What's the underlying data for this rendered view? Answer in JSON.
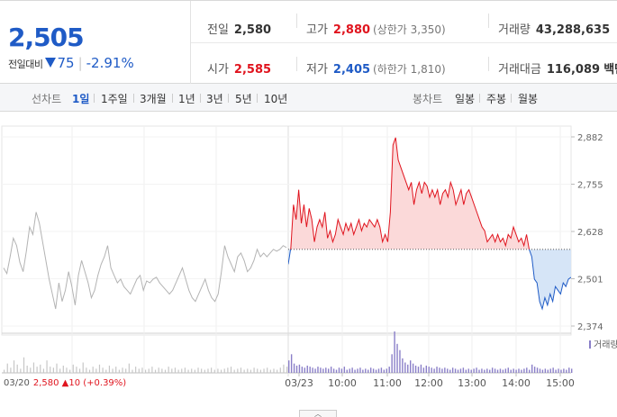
{
  "quote": {
    "price": "2,505",
    "change_label": "전일대비",
    "change": "75",
    "change_rate": "-2.91%",
    "prev_close_label": "전일",
    "prev_close": "2,580",
    "high_label": "고가",
    "high": "2,880",
    "upper_limit": "(상한가 3,350)",
    "volume_label": "거래량",
    "volume": "43,288,635",
    "open_label": "시가",
    "open": "2,585",
    "low_label": "저가",
    "low": "2,405",
    "lower_limit": "(하한가 1,810)",
    "amount_label": "거래대금",
    "amount": "116,089",
    "amount_unit": "백만"
  },
  "tabs": {
    "line_label": "선차트",
    "line": [
      "1일",
      "1주일",
      "3개월",
      "1년",
      "3년",
      "5년",
      "10년"
    ],
    "line_selected": "1일",
    "candle_label": "봉차트",
    "candle": [
      "일봉",
      "주봉",
      "월봉"
    ]
  },
  "chart_data": {
    "type": "line",
    "y_ticks": [
      "2,882",
      "2,755",
      "2,628",
      "2,501",
      "2,374"
    ],
    "ylim": [
      2374,
      2882
    ],
    "x_ticks": [
      "03/23",
      "10:00",
      "11:00",
      "12:00",
      "13:00",
      "14:00",
      "15:00"
    ],
    "prev_day_label": "03/20",
    "prev_day_close": "2,580",
    "prev_day_change": "▲10 (+0.39%)",
    "baseline": 2580,
    "volume_label": "거래량",
    "prev_day_series": [
      2530,
      2515,
      2560,
      2610,
      2590,
      2545,
      2520,
      2575,
      2640,
      2620,
      2680,
      2650,
      2600,
      2550,
      2500,
      2460,
      2420,
      2490,
      2440,
      2470,
      2520,
      2480,
      2430,
      2510,
      2550,
      2520,
      2490,
      2450,
      2470,
      2510,
      2540,
      2560,
      2590,
      2530,
      2510,
      2490,
      2500,
      2480,
      2470,
      2460,
      2480,
      2500,
      2510,
      2470,
      2495,
      2490,
      2500,
      2505,
      2490,
      2480,
      2470,
      2460,
      2470,
      2490,
      2510,
      2530,
      2500,
      2470,
      2450,
      2440,
      2460,
      2480,
      2500,
      2470,
      2450,
      2440,
      2460,
      2520,
      2590,
      2560,
      2540,
      2520,
      2560,
      2570,
      2550,
      2520,
      2530,
      2550,
      2580,
      2560,
      2570,
      2560,
      2570,
      2580,
      2575,
      2580,
      2590,
      2585
    ],
    "today_series": [
      2540,
      2585,
      2700,
      2660,
      2740,
      2650,
      2700,
      2640,
      2690,
      2660,
      2600,
      2640,
      2660,
      2640,
      2680,
      2610,
      2630,
      2600,
      2620,
      2660,
      2640,
      2620,
      2650,
      2630,
      2650,
      2620,
      2640,
      2660,
      2630,
      2650,
      2640,
      2660,
      2650,
      2640,
      2660,
      2640,
      2600,
      2620,
      2600,
      2680,
      2860,
      2880,
      2820,
      2800,
      2780,
      2760,
      2740,
      2760,
      2700,
      2740,
      2760,
      2730,
      2760,
      2750,
      2720,
      2740,
      2720,
      2740,
      2700,
      2730,
      2740,
      2720,
      2760,
      2740,
      2700,
      2720,
      2740,
      2700,
      2730,
      2740,
      2720,
      2700,
      2680,
      2660,
      2640,
      2630,
      2600,
      2610,
      2620,
      2600,
      2620,
      2600,
      2610,
      2590,
      2620,
      2610,
      2640,
      2620,
      2600,
      2610,
      2590,
      2620,
      2580,
      2560,
      2500,
      2490,
      2440,
      2420,
      2450,
      2430,
      2460,
      2440,
      2480,
      2470,
      2460,
      2490,
      2480,
      2500,
      2505
    ],
    "prev_day_volume": [
      3,
      9,
      5,
      12,
      8,
      4,
      15,
      7,
      5,
      10,
      6,
      8,
      4,
      12,
      6,
      5,
      9,
      4,
      7,
      5,
      3,
      8,
      6,
      4,
      10,
      5,
      3,
      6,
      4,
      8,
      5,
      3,
      7,
      4,
      6,
      3,
      5,
      4,
      9,
      3,
      6,
      4,
      5,
      3,
      4,
      6,
      3,
      5,
      4,
      3,
      6,
      4,
      5,
      3,
      4,
      5,
      3,
      4,
      3,
      5,
      4,
      3,
      4,
      5,
      3,
      4,
      3,
      4,
      5,
      6,
      3,
      4,
      5,
      3,
      4,
      3,
      5,
      4,
      3,
      4,
      5,
      3,
      4,
      3,
      5,
      8,
      6
    ],
    "today_volume": [
      12,
      18,
      9,
      7,
      8,
      6,
      5,
      7,
      6,
      5,
      4,
      6,
      5,
      4,
      5,
      4,
      6,
      4,
      3,
      5,
      4,
      6,
      3,
      4,
      5,
      3,
      4,
      5,
      3,
      4,
      3,
      5,
      4,
      3,
      4,
      5,
      3,
      4,
      6,
      18,
      40,
      28,
      22,
      14,
      10,
      8,
      12,
      9,
      7,
      6,
      8,
      5,
      7,
      6,
      5,
      4,
      6,
      5,
      4,
      5,
      4,
      3,
      5,
      4,
      3,
      4,
      5,
      3,
      4,
      3,
      4,
      5,
      3,
      4,
      3,
      4,
      3,
      5,
      4,
      3,
      4,
      3,
      4,
      5,
      3,
      4,
      3,
      4,
      3,
      4,
      5,
      3,
      8,
      6,
      5,
      4,
      3,
      4,
      3,
      4,
      5,
      3,
      4,
      3,
      4,
      3,
      5,
      4
    ]
  }
}
